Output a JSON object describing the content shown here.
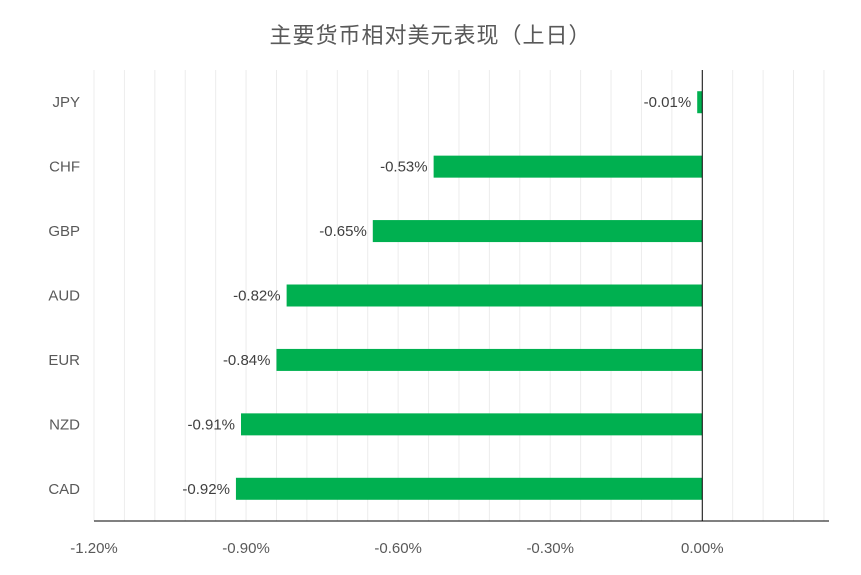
{
  "chart_data": {
    "type": "bar",
    "orientation": "horizontal",
    "title": "主要货币相对美元表现（上日）",
    "categories": [
      "JPY",
      "CHF",
      "GBP",
      "AUD",
      "EUR",
      "NZD",
      "CAD"
    ],
    "values": [
      -0.01,
      -0.53,
      -0.65,
      -0.82,
      -0.84,
      -0.91,
      -0.92
    ],
    "value_labels": [
      "-0.01%",
      "-0.53%",
      "-0.65%",
      "-0.82%",
      "-0.84%",
      "-0.91%",
      "-0.92%"
    ],
    "xlim": [
      -1.2,
      0.25
    ],
    "x_ticks": [
      -1.2,
      -0.9,
      -0.6,
      -0.3,
      0.0
    ],
    "x_tick_labels": [
      "-1.20%",
      "-0.90%",
      "-0.60%",
      "-0.30%",
      "0.00%"
    ],
    "minor_grid_step": 0.06,
    "grid": true,
    "bar_color": "#00b050",
    "grid_color": "#ececec",
    "axis_color": "#000000",
    "legend": "none"
  }
}
